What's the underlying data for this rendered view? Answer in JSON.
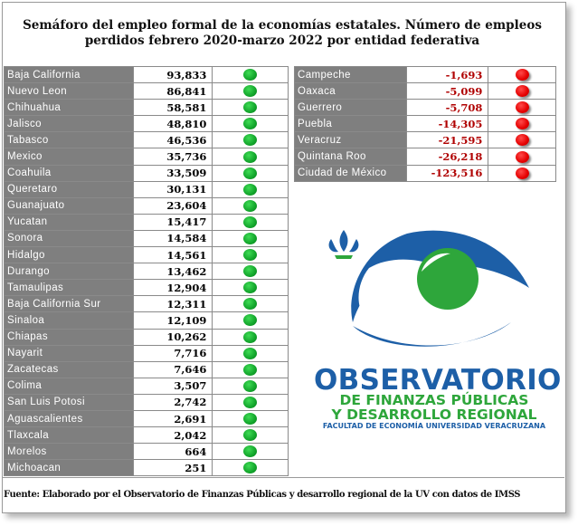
{
  "title": {
    "line1": "Semáforo del empleo formal  de la economías estatales. Número de empleos",
    "line2": "perdidos febrero 2020-marzo 2022 por entidad federativa"
  },
  "colors": {
    "state_cell": "#7f7f7f",
    "positive_light": "#12a52b",
    "negative_light": "#e50000",
    "negative_text": "#b00000"
  },
  "positive_states": [
    {
      "state": "Baja California",
      "value": "93,833"
    },
    {
      "state": "Nuevo Leon",
      "value": "86,841"
    },
    {
      "state": "Chihuahua",
      "value": "58,581"
    },
    {
      "state": "Jalisco",
      "value": "48,810"
    },
    {
      "state": "Tabasco",
      "value": "46,536"
    },
    {
      "state": "Mexico",
      "value": "35,736"
    },
    {
      "state": "Coahuila",
      "value": "33,509"
    },
    {
      "state": "Queretaro",
      "value": "30,131"
    },
    {
      "state": "Guanajuato",
      "value": "23,604"
    },
    {
      "state": "Yucatan",
      "value": "15,417"
    },
    {
      "state": "Sonora",
      "value": "14,584"
    },
    {
      "state": "Hidalgo",
      "value": "14,561"
    },
    {
      "state": "Durango",
      "value": "13,462"
    },
    {
      "state": "Tamaulipas",
      "value": "12,904"
    },
    {
      "state": "Baja California Sur",
      "value": "12,311"
    },
    {
      "state": "Sinaloa",
      "value": "12,109"
    },
    {
      "state": "Chiapas",
      "value": "10,262"
    },
    {
      "state": "Nayarit",
      "value": "7,716"
    },
    {
      "state": "Zacatecas",
      "value": "7,646"
    },
    {
      "state": "Colima",
      "value": "3,507"
    },
    {
      "state": "San Luis Potosi",
      "value": "2,742"
    },
    {
      "state": "Aguascalientes",
      "value": "2,691"
    },
    {
      "state": "Tlaxcala",
      "value": "2,042"
    },
    {
      "state": "Morelos",
      "value": "664"
    },
    {
      "state": "Michoacan",
      "value": "251"
    }
  ],
  "negative_states": [
    {
      "state": "Campeche",
      "value": "-1,693"
    },
    {
      "state": "Oaxaca",
      "value": "-5,099"
    },
    {
      "state": "Guerrero",
      "value": "-5,708"
    },
    {
      "state": "Puebla",
      "value": "-14,305"
    },
    {
      "state": "Veracruz",
      "value": "-21,595"
    },
    {
      "state": "Quintana Roo",
      "value": "-26,218"
    },
    {
      "state": "Ciudad de México",
      "value": "-123,516"
    }
  ],
  "logo": {
    "name": "OBSERVATORIO",
    "line2": "DE FINANZAS PÚBLICAS",
    "line3": "Y DESARROLLO REGIONAL",
    "line4": "FACULTAD DE ECONOMÍA UNIVERSIDAD VERACRUZANA"
  },
  "source": "Fuente: Elaborado por el Observatorio de Finanzas Públicas  y desarrollo regional de la UV con datos de IMSS"
}
